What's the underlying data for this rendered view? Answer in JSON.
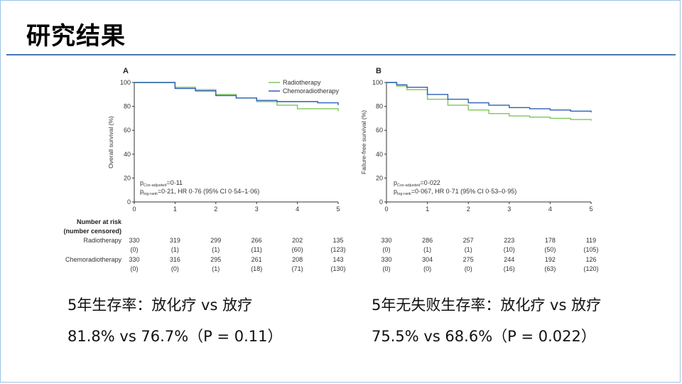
{
  "slide": {
    "title": "研究结果"
  },
  "colors": {
    "radiotherapy": "#7dc75a",
    "chemoradiotherapy": "#2f5fb5",
    "rule": "#4a77b4"
  },
  "chart_data": [
    {
      "type": "line",
      "panel": "A",
      "ylabel": "Overall survival (%)",
      "xlim": [
        0,
        5
      ],
      "ylim": [
        0,
        100
      ],
      "x_ticks": [
        "0",
        "1",
        "2",
        "3",
        "4",
        "5"
      ],
      "y_ticks": [
        "0",
        "20",
        "40",
        "60",
        "80",
        "100"
      ],
      "legend": [
        "Radiotherapy",
        "Chemoradiotherapy"
      ],
      "legend_position": "top-right",
      "series": [
        {
          "name": "Radiotherapy",
          "x": [
            0,
            0.4,
            1,
            1.5,
            2,
            2.5,
            3,
            3.5,
            4,
            4.5,
            5
          ],
          "y": [
            100,
            100,
            96,
            94,
            90,
            87,
            84,
            81,
            78,
            78,
            76
          ]
        },
        {
          "name": "Chemoradiotherapy",
          "x": [
            0,
            0.4,
            1,
            1.5,
            2,
            2.5,
            3,
            3.5,
            4,
            4.5,
            5
          ],
          "y": [
            100,
            100,
            95,
            93,
            89,
            87,
            85,
            84,
            84,
            83,
            81
          ]
        }
      ],
      "annotation1": {
        "p": "p",
        "sub": "Cox-adjusted",
        "rest": "=0·11"
      },
      "annotation2": {
        "p": "p",
        "sub": "log-rank",
        "rest": "=0·21, HR 0·76 (95% CI 0·54–1·06)"
      },
      "risk_table": {
        "header1": "Number at risk",
        "header2": "(number censored)",
        "rows": [
          {
            "label": "Radiotherapy",
            "at_risk": [
              "330",
              "319",
              "299",
              "266",
              "202",
              "135"
            ],
            "censored": [
              "(0)",
              "(1)",
              "(1)",
              "(11)",
              "(60)",
              "(123)"
            ]
          },
          {
            "label": "Chemoradiotherapy",
            "at_risk": [
              "330",
              "316",
              "295",
              "261",
              "208",
              "143"
            ],
            "censored": [
              "(0)",
              "(0)",
              "(1)",
              "(18)",
              "(71)",
              "(130)"
            ]
          }
        ]
      }
    },
    {
      "type": "line",
      "panel": "B",
      "ylabel": "Failure-free survival (%)",
      "xlim": [
        0,
        5
      ],
      "ylim": [
        0,
        100
      ],
      "x_ticks": [
        "0",
        "1",
        "2",
        "3",
        "4",
        "5"
      ],
      "y_ticks": [
        "0",
        "20",
        "40",
        "60",
        "80",
        "100"
      ],
      "series": [
        {
          "name": "Radiotherapy",
          "x": [
            0,
            0.25,
            0.5,
            1,
            1.5,
            2,
            2.5,
            3,
            3.5,
            4,
            4.5,
            5
          ],
          "y": [
            100,
            97,
            94,
            86,
            81,
            77,
            74,
            72,
            71,
            70,
            69,
            68
          ]
        },
        {
          "name": "Chemoradiotherapy",
          "x": [
            0,
            0.25,
            0.5,
            1,
            1.5,
            2,
            2.5,
            3,
            3.5,
            4,
            4.5,
            5
          ],
          "y": [
            100,
            98,
            96,
            90,
            86,
            83,
            81,
            79,
            78,
            77,
            76,
            75
          ]
        }
      ],
      "annotation1": {
        "p": "p",
        "sub": "Cox-adjusted",
        "rest": "=0·022"
      },
      "annotation2": {
        "p": "p",
        "sub": "log-rank",
        "rest": "=0·067, HR 0·71 (95% CI 0·53–0·95)"
      },
      "risk_table": {
        "rows": [
          {
            "label": "",
            "at_risk": [
              "330",
              "286",
              "257",
              "223",
              "178",
              "119"
            ],
            "censored": [
              "(0)",
              "(1)",
              "(1)",
              "(10)",
              "(50)",
              "(105)"
            ]
          },
          {
            "label": "",
            "at_risk": [
              "330",
              "304",
              "275",
              "244",
              "192",
              "126"
            ],
            "censored": [
              "(0)",
              "(0)",
              "(0)",
              "(16)",
              "(63)",
              "(120)"
            ]
          }
        ]
      }
    }
  ],
  "summary": {
    "os_title": "5年生存率：放化疗 vs 放疗",
    "os_values": "81.8% vs 76.7%（P = 0.11）",
    "ffs_title": "5年无失败生存率：放化疗 vs 放疗",
    "ffs_values": "75.5% vs 68.6%（P = 0.022）"
  }
}
